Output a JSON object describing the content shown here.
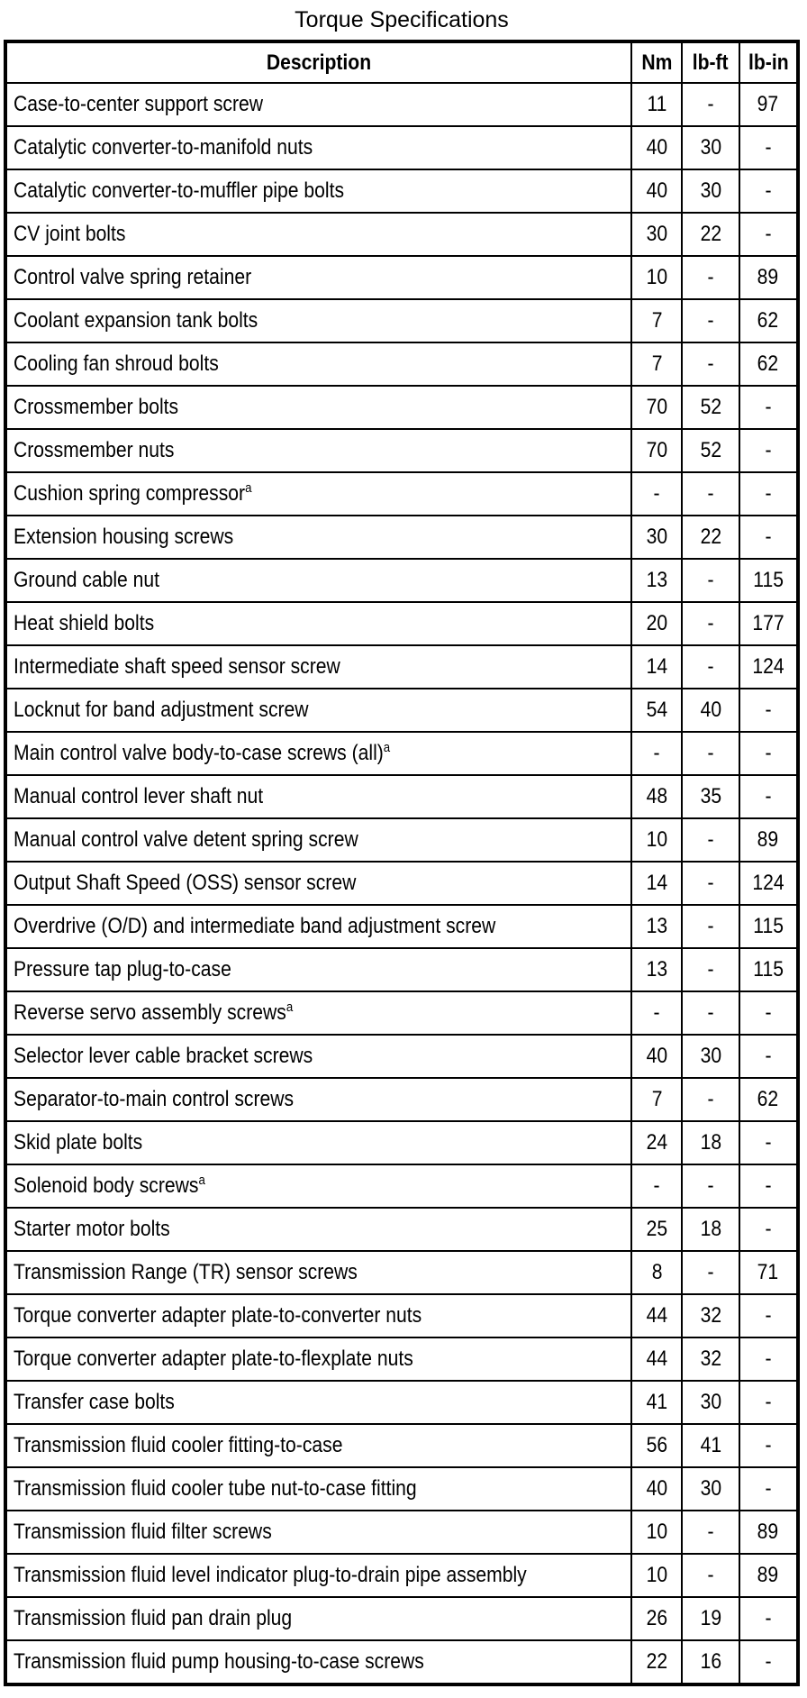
{
  "title": "Torque Specifications",
  "table": {
    "columns": [
      "Description",
      "Nm",
      "lb-ft",
      "lb-in"
    ],
    "rows": [
      {
        "description": "Case-to-center support screw",
        "note": "",
        "nm": "11",
        "lb_ft": "-",
        "lb_in": "97"
      },
      {
        "description": "Catalytic converter-to-manifold nuts",
        "note": "",
        "nm": "40",
        "lb_ft": "30",
        "lb_in": "-"
      },
      {
        "description": "Catalytic converter-to-muffler pipe bolts",
        "note": "",
        "nm": "40",
        "lb_ft": "30",
        "lb_in": "-"
      },
      {
        "description": "CV joint bolts",
        "note": "",
        "nm": "30",
        "lb_ft": "22",
        "lb_in": "-"
      },
      {
        "description": "Control valve spring retainer",
        "note": "",
        "nm": "10",
        "lb_ft": "-",
        "lb_in": "89"
      },
      {
        "description": "Coolant expansion tank bolts",
        "note": "",
        "nm": "7",
        "lb_ft": "-",
        "lb_in": "62"
      },
      {
        "description": "Cooling fan shroud bolts",
        "note": "",
        "nm": "7",
        "lb_ft": "-",
        "lb_in": "62"
      },
      {
        "description": "Crossmember bolts",
        "note": "",
        "nm": "70",
        "lb_ft": "52",
        "lb_in": "-"
      },
      {
        "description": "Crossmember nuts",
        "note": "",
        "nm": "70",
        "lb_ft": "52",
        "lb_in": "-"
      },
      {
        "description": "Cushion spring compressor",
        "note": "a",
        "nm": "-",
        "lb_ft": "-",
        "lb_in": "-"
      },
      {
        "description": "Extension housing screws",
        "note": "",
        "nm": "30",
        "lb_ft": "22",
        "lb_in": "-"
      },
      {
        "description": "Ground cable nut",
        "note": "",
        "nm": "13",
        "lb_ft": "-",
        "lb_in": "115"
      },
      {
        "description": "Heat shield bolts",
        "note": "",
        "nm": "20",
        "lb_ft": "-",
        "lb_in": "177"
      },
      {
        "description": "Intermediate shaft speed sensor screw",
        "note": "",
        "nm": "14",
        "lb_ft": "-",
        "lb_in": "124"
      },
      {
        "description": "Locknut for band adjustment screw",
        "note": "",
        "nm": "54",
        "lb_ft": "40",
        "lb_in": "-"
      },
      {
        "description": "Main control valve body-to-case screws (all)",
        "note": "a",
        "nm": "-",
        "lb_ft": "-",
        "lb_in": "-"
      },
      {
        "description": "Manual control lever shaft nut",
        "note": "",
        "nm": "48",
        "lb_ft": "35",
        "lb_in": "-"
      },
      {
        "description": "Manual control valve detent spring screw",
        "note": "",
        "nm": "10",
        "lb_ft": "-",
        "lb_in": "89"
      },
      {
        "description": "Output Shaft Speed (OSS) sensor screw",
        "note": "",
        "nm": "14",
        "lb_ft": "-",
        "lb_in": "124"
      },
      {
        "description": "Overdrive (O/D) and intermediate band adjustment screw",
        "note": "",
        "nm": "13",
        "lb_ft": "-",
        "lb_in": "115"
      },
      {
        "description": "Pressure tap plug-to-case",
        "note": "",
        "nm": "13",
        "lb_ft": "-",
        "lb_in": "115"
      },
      {
        "description": "Reverse servo assembly screws",
        "note": "a",
        "nm": "-",
        "lb_ft": "-",
        "lb_in": "-"
      },
      {
        "description": "Selector lever cable bracket screws",
        "note": "",
        "nm": "40",
        "lb_ft": "30",
        "lb_in": "-"
      },
      {
        "description": "Separator-to-main control screws",
        "note": "",
        "nm": "7",
        "lb_ft": "-",
        "lb_in": "62"
      },
      {
        "description": "Skid plate bolts",
        "note": "",
        "nm": "24",
        "lb_ft": "18",
        "lb_in": "-"
      },
      {
        "description": "Solenoid body screws",
        "note": "a",
        "nm": "-",
        "lb_ft": "-",
        "lb_in": "-"
      },
      {
        "description": "Starter motor bolts",
        "note": "",
        "nm": "25",
        "lb_ft": "18",
        "lb_in": "-"
      },
      {
        "description": "Transmission Range (TR) sensor screws",
        "note": "",
        "nm": "8",
        "lb_ft": "-",
        "lb_in": "71"
      },
      {
        "description": "Torque converter adapter plate-to-converter nuts",
        "note": "",
        "nm": "44",
        "lb_ft": "32",
        "lb_in": "-"
      },
      {
        "description": "Torque converter adapter plate-to-flexplate nuts",
        "note": "",
        "nm": "44",
        "lb_ft": "32",
        "lb_in": "-"
      },
      {
        "description": "Transfer case bolts",
        "note": "",
        "nm": "41",
        "lb_ft": "30",
        "lb_in": "-"
      },
      {
        "description": "Transmission fluid cooler fitting-to-case",
        "note": "",
        "nm": "56",
        "lb_ft": "41",
        "lb_in": "-"
      },
      {
        "description": "Transmission fluid cooler tube nut-to-case fitting",
        "note": "",
        "nm": "40",
        "lb_ft": "30",
        "lb_in": "-"
      },
      {
        "description": "Transmission fluid filter screws",
        "note": "",
        "nm": "10",
        "lb_ft": "-",
        "lb_in": "89"
      },
      {
        "description": "Transmission fluid level indicator plug-to-drain pipe assembly",
        "note": "",
        "nm": "10",
        "lb_ft": "-",
        "lb_in": "89"
      },
      {
        "description": "Transmission fluid pan drain plug",
        "note": "",
        "nm": "26",
        "lb_ft": "19",
        "lb_in": "-"
      },
      {
        "description": "Transmission fluid pump housing-to-case screws",
        "note": "",
        "nm": "22",
        "lb_ft": "16",
        "lb_in": "-"
      }
    ]
  }
}
